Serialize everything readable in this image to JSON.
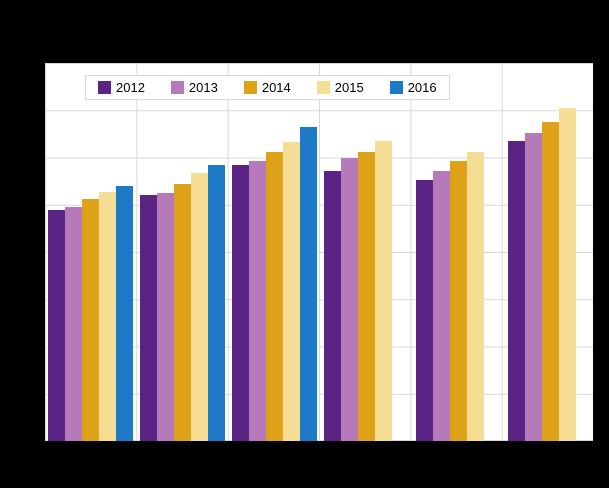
{
  "figure": {
    "title": "",
    "background_color": "#000000",
    "plot_background_color": "#ffffff",
    "gridline_color": "#d9d9d9"
  },
  "chart_data": {
    "type": "bar",
    "title": "",
    "xlabel": "",
    "ylabel": "",
    "categories": [
      "",
      "",
      "",
      "",
      "",
      ""
    ],
    "series": [
      {
        "name": "2012",
        "color": "#5b2383",
        "values": [
          61,
          65,
          73,
          71.5,
          69,
          79.5
        ]
      },
      {
        "name": "2013",
        "color": "#b679b9",
        "values": [
          62,
          65.5,
          74,
          75,
          71.5,
          81.5
        ]
      },
      {
        "name": "2014",
        "color": "#dda217",
        "values": [
          64,
          68,
          76.5,
          76.5,
          74,
          84.5
        ]
      },
      {
        "name": "2015",
        "color": "#f6dd96",
        "values": [
          66,
          71,
          79,
          79.5,
          76.5,
          88
        ]
      },
      {
        "name": "2016",
        "color": "#1e7ac6",
        "values": [
          67.5,
          73,
          83,
          null,
          null,
          null
        ]
      }
    ],
    "ylim": [
      0,
      100
    ],
    "value_note": "No axis tick labels are visible in the image; values are estimated as percent of plot height",
    "grid": true,
    "legend_position": "top-inside"
  }
}
